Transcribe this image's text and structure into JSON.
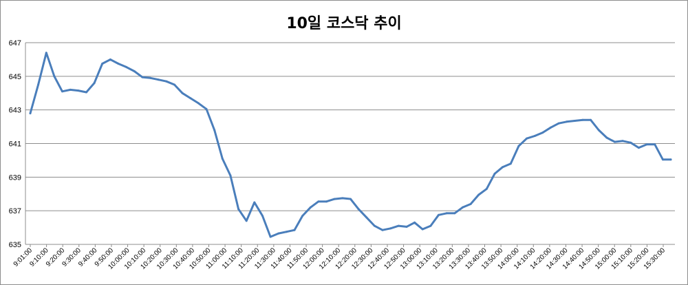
{
  "chart_data": {
    "type": "line",
    "title": "10일 코스닥 추이",
    "xlabel": "",
    "ylabel": "",
    "ylim": [
      635,
      647
    ],
    "yticks": [
      635,
      637,
      639,
      641,
      643,
      645,
      647
    ],
    "grid": true,
    "legend": "none",
    "line_color": "#4a7ebb",
    "x_tick_labels": [
      "9:01:00",
      "9:10:00",
      "9:20:00",
      "9:30:00",
      "9:40:00",
      "9:50:00",
      "10:00:00",
      "10:10:00",
      "10:20:00",
      "10:30:00",
      "10:40:00",
      "10:50:00",
      "11:00:00",
      "11:10:00",
      "11:20:00",
      "11:30:00",
      "11:40:00",
      "11:50:00",
      "12:00:00",
      "12:10:00",
      "12:20:00",
      "12:30:00",
      "12:40:00",
      "12:50:00",
      "13:00:00",
      "13:10:00",
      "13:20:00",
      "13:30:00",
      "13:40:00",
      "13:50:00",
      "14:00:00",
      "14:10:00",
      "14:20:00",
      "14:30:00",
      "14:40:00",
      "14:50:00",
      "15:00:00",
      "15:10:00",
      "15:20:00",
      "15:30:00"
    ],
    "series": [
      {
        "values": [
          642.8,
          644.5,
          646.4,
          645.0,
          644.1,
          644.2,
          644.15,
          644.05,
          644.6,
          645.75,
          646.0,
          645.75,
          645.55,
          645.3,
          644.95,
          644.9,
          644.8,
          644.7,
          644.5,
          644.0,
          643.7,
          643.4,
          643.05,
          641.8,
          640.1,
          639.1,
          637.1,
          636.4,
          637.5,
          636.7,
          635.45,
          635.65,
          635.75,
          635.85,
          636.7,
          637.2,
          637.55,
          637.55,
          637.7,
          637.75,
          637.7,
          637.1,
          636.6,
          636.1,
          635.85,
          635.95,
          636.1,
          636.05,
          636.3,
          635.9,
          636.1,
          636.75,
          636.85,
          636.85,
          637.2,
          637.4,
          637.95,
          638.3,
          639.2,
          639.6,
          639.8,
          640.85,
          641.3,
          641.45,
          641.65,
          641.95,
          642.2,
          642.3,
          642.35,
          642.4,
          642.4,
          641.8,
          641.35,
          641.1,
          641.15,
          641.05,
          640.75,
          640.95,
          640.95,
          640.05,
          640.05
        ]
      }
    ]
  }
}
